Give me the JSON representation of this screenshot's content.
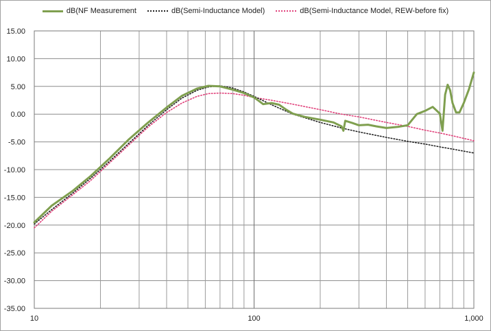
{
  "chart_data": {
    "type": "line",
    "title": "",
    "xlabel": "",
    "ylabel": "",
    "xscale": "log",
    "xlim": [
      10,
      1000
    ],
    "ylim": [
      -35,
      15
    ],
    "ytick_step": 5,
    "xtick_labels": [
      {
        "value": 10,
        "label": "10"
      },
      {
        "value": 100,
        "label": "100"
      },
      {
        "value": 1000,
        "label": "1,000"
      }
    ],
    "ytick_labels": [
      "15.00",
      "10.00",
      "5.00",
      "0.00",
      "-5.00",
      "-10.00",
      "-15.00",
      "-20.00",
      "-25.00",
      "-30.00",
      "-35.00"
    ],
    "grid": true,
    "legend_position": "top",
    "series": [
      {
        "name": "dB(NF Measurement",
        "color": "#7f9f4f",
        "style": "solid",
        "x": [
          10,
          12,
          15,
          18,
          22,
          27,
          33,
          40,
          47,
          55,
          62,
          70,
          80,
          90,
          100,
          105,
          110,
          120,
          130,
          140,
          150,
          170,
          200,
          230,
          250,
          255,
          260,
          280,
          300,
          330,
          360,
          400,
          450,
          500,
          550,
          600,
          650,
          700,
          720,
          740,
          760,
          780,
          800,
          830,
          860,
          900,
          950,
          1000
        ],
        "y": [
          -19.5,
          -16.5,
          -13.8,
          -11.2,
          -8.0,
          -4.5,
          -1.5,
          1.2,
          3.3,
          4.6,
          5.1,
          5.0,
          4.4,
          3.8,
          3.0,
          2.4,
          1.8,
          2.0,
          1.7,
          0.8,
          0.1,
          -0.5,
          -1.0,
          -1.5,
          -2.2,
          -3.0,
          -1.2,
          -1.6,
          -2.0,
          -1.9,
          -2.2,
          -2.5,
          -2.3,
          -2.0,
          0.0,
          0.6,
          1.3,
          0.1,
          -3.0,
          3.5,
          5.3,
          4.3,
          2.0,
          0.3,
          0.3,
          2.0,
          4.5,
          7.5
        ]
      },
      {
        "name": "dB(Semi-Inductance Model)",
        "color": "#222222",
        "style": "dotted",
        "x": [
          10,
          12,
          15,
          18,
          22,
          27,
          33,
          40,
          47,
          55,
          62,
          70,
          80,
          90,
          100,
          120,
          150,
          200,
          250,
          300,
          400,
          500,
          600,
          700,
          800,
          1000
        ],
        "y": [
          -19.8,
          -17.2,
          -14.2,
          -11.6,
          -8.5,
          -5.2,
          -2.0,
          0.8,
          2.9,
          4.3,
          4.9,
          5.1,
          4.7,
          4.0,
          3.2,
          1.7,
          0.0,
          -1.5,
          -2.5,
          -3.2,
          -4.2,
          -4.9,
          -5.4,
          -5.9,
          -6.3,
          -7.0
        ]
      },
      {
        "name": "dB(Semi-Inductance Model, REW-before fix)",
        "color": "#e0407a",
        "style": "dotted",
        "x": [
          10,
          12,
          15,
          18,
          22,
          27,
          33,
          40,
          47,
          55,
          62,
          70,
          80,
          90,
          100,
          120,
          150,
          200,
          250,
          300,
          400,
          500,
          600,
          700,
          800,
          1000
        ],
        "y": [
          -20.5,
          -17.5,
          -14.5,
          -12.0,
          -8.8,
          -5.5,
          -2.3,
          0.3,
          2.0,
          3.2,
          3.7,
          3.8,
          3.7,
          3.4,
          3.0,
          2.5,
          1.8,
          0.8,
          0.0,
          -0.5,
          -1.5,
          -2.2,
          -2.9,
          -3.4,
          -3.9,
          -4.8
        ]
      }
    ]
  }
}
